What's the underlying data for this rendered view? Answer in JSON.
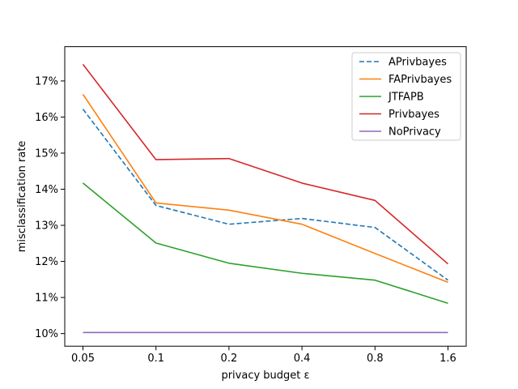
{
  "chart_data": {
    "type": "line",
    "xlabel": "privacy budget ε",
    "ylabel": "misclassification rate",
    "categories": [
      "0.05",
      "0.1",
      "0.2",
      "0.4",
      "0.8",
      "1.6"
    ],
    "yticks": [
      "10%",
      "11%",
      "12%",
      "13%",
      "14%",
      "15%",
      "16%",
      "17%"
    ],
    "ylim": [
      9.65,
      17.95
    ],
    "grid": false,
    "legend_position": "top-right",
    "series": [
      {
        "name": "APrivbayes",
        "color": "#1f77b4",
        "dashed": true,
        "values": [
          16.22,
          13.55,
          13.03,
          13.19,
          12.94,
          11.48
        ]
      },
      {
        "name": "FAPrivbayes",
        "color": "#ff7f0e",
        "dashed": false,
        "values": [
          16.63,
          13.62,
          13.42,
          13.03,
          12.22,
          11.42
        ]
      },
      {
        "name": "JTFAPB",
        "color": "#2ca02c",
        "dashed": false,
        "values": [
          14.17,
          12.51,
          11.95,
          11.67,
          11.48,
          10.84
        ]
      },
      {
        "name": "Privbayes",
        "color": "#d62728",
        "dashed": false,
        "values": [
          17.46,
          14.82,
          14.85,
          14.17,
          13.69,
          11.93
        ]
      },
      {
        "name": "NoPrivacy",
        "color": "#9467bd",
        "dashed": false,
        "values": [
          10.03,
          10.03,
          10.03,
          10.03,
          10.03,
          10.03
        ]
      }
    ]
  }
}
